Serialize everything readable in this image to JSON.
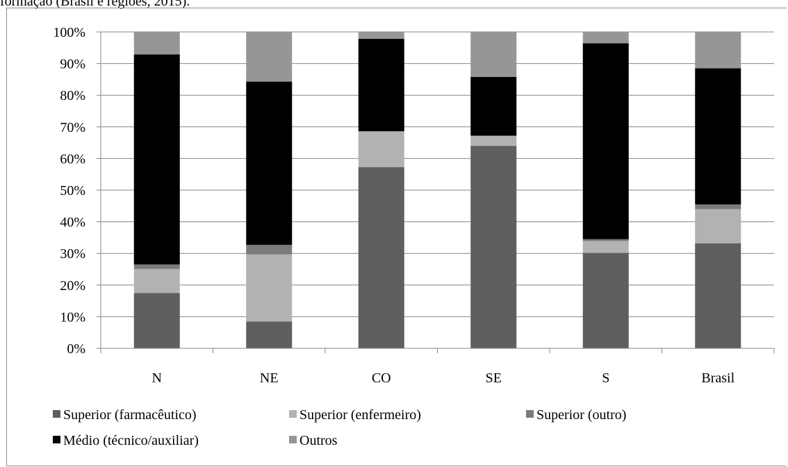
{
  "caption": "formação (Brasil e regiões, 2015).",
  "chart_data": {
    "type": "bar",
    "stacked": true,
    "percent": true,
    "title": "",
    "xlabel": "",
    "ylabel": "",
    "ylim": [
      0,
      100
    ],
    "yticks": [
      "0%",
      "10%",
      "20%",
      "30%",
      "40%",
      "50%",
      "60%",
      "70%",
      "80%",
      "90%",
      "100%"
    ],
    "grid": true,
    "legend_position": "bottom",
    "categories": [
      "N",
      "NE",
      "CO",
      "SE",
      "S",
      "Brasil"
    ],
    "series": [
      {
        "name": "Superior (farmacêutico)",
        "color": "#5f5f5f",
        "values": [
          17.5,
          8.5,
          57.3,
          64.0,
          30.2,
          33.2
        ]
      },
      {
        "name": "Superior (enfermeiro)",
        "color": "#b2b2b2",
        "values": [
          7.6,
          21.2,
          11.3,
          3.2,
          3.7,
          10.8
        ]
      },
      {
        "name": "Superior (outro)",
        "color": "#7b7b7b",
        "values": [
          1.4,
          3.0,
          0.0,
          0.0,
          0.6,
          1.5
        ]
      },
      {
        "name": "Médio (técnico/auxiliar)",
        "color": "#000000",
        "values": [
          66.4,
          51.6,
          29.2,
          18.6,
          61.9,
          43.0
        ]
      },
      {
        "name": "Outros",
        "color": "#969696",
        "values": [
          7.1,
          15.7,
          2.2,
          14.2,
          3.6,
          11.5
        ]
      }
    ]
  }
}
